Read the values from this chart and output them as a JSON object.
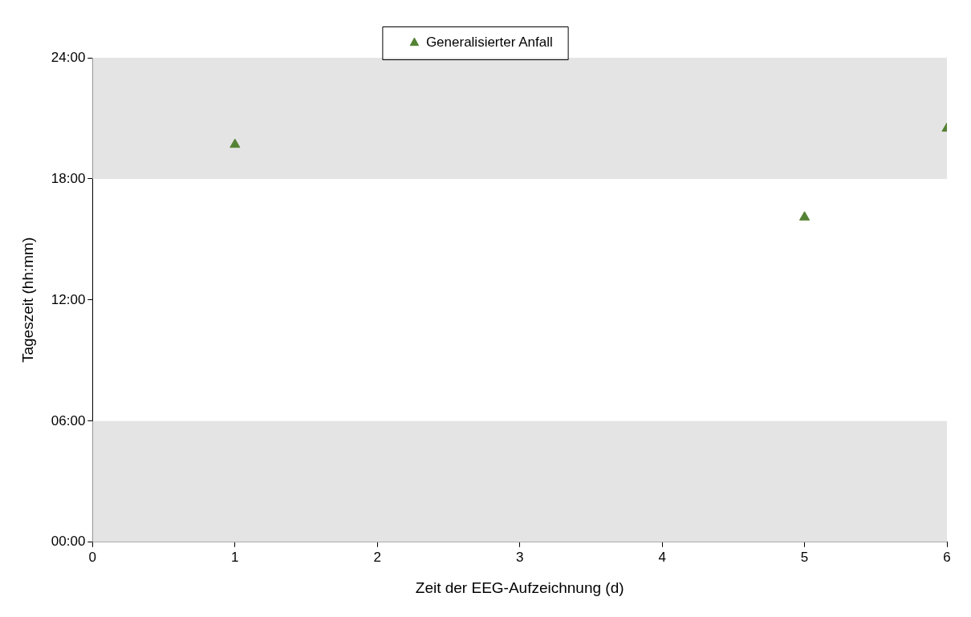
{
  "chart_data": {
    "type": "scatter",
    "xlabel": "Zeit der EEG-Aufzeichnung (d)",
    "ylabel": "Tageszeit (hh:mm)",
    "x": [
      1,
      5,
      6
    ],
    "series": [
      {
        "name": "Generalisierter Anfall",
        "color": "#548235",
        "values": [
          19.7,
          16.1,
          20.5
        ]
      }
    ],
    "xlim": [
      0,
      6
    ],
    "xticks": [
      0,
      1,
      2,
      3,
      4,
      5,
      6
    ],
    "ylim": [
      0,
      24
    ],
    "yticks": [
      {
        "value": 0,
        "label": "00:00"
      },
      {
        "value": 6,
        "label": "06:00"
      },
      {
        "value": 12,
        "label": "12:00"
      },
      {
        "value": 18,
        "label": "18:00"
      },
      {
        "value": 24,
        "label": "24:00"
      }
    ],
    "bands": [
      {
        "axis": "y",
        "from": 0,
        "to": 6,
        "color": "#e4e4e4"
      },
      {
        "axis": "y",
        "from": 18,
        "to": 24,
        "color": "#e4e4e4"
      }
    ],
    "legend": "top",
    "marker": "triangle",
    "grid": false
  }
}
